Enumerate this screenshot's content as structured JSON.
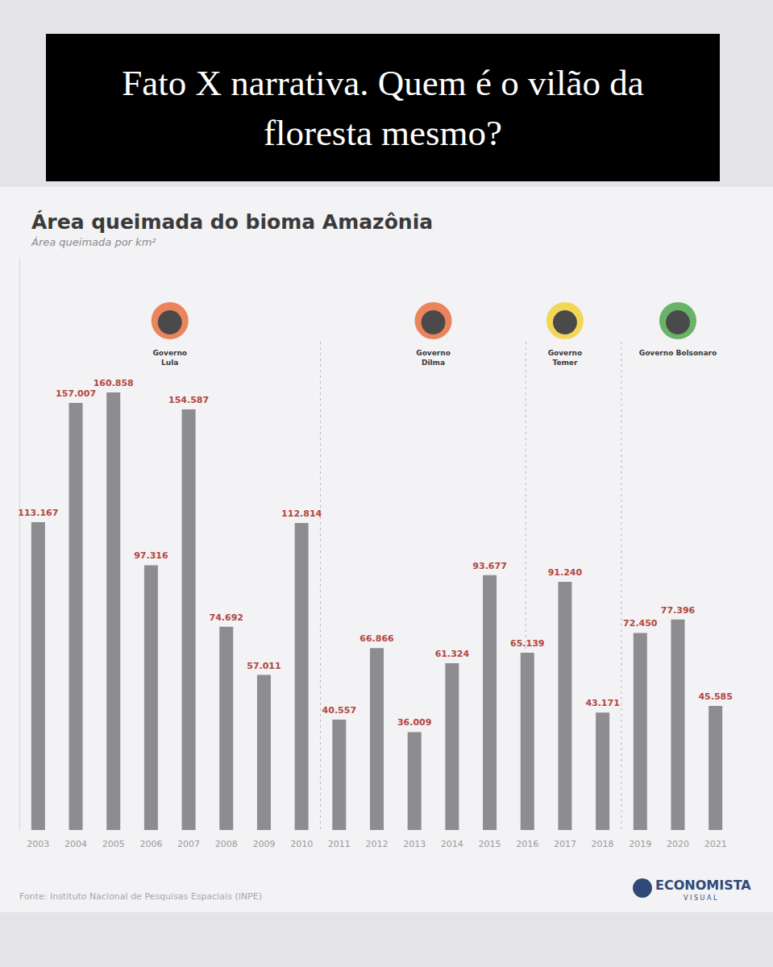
{
  "header": {
    "title": "Fato X narrativa. Quem é o vilão da floresta mesmo?"
  },
  "chart_data": {
    "type": "bar",
    "title": "Área queimada do bioma Amazônia",
    "subtitle": "Área queimada por km²",
    "categories": [
      "2003",
      "2004",
      "2005",
      "2006",
      "2007",
      "2008",
      "2009",
      "2010",
      "2011",
      "2012",
      "2013",
      "2014",
      "2015",
      "2016",
      "2017",
      "2018",
      "2019",
      "2020",
      "2021"
    ],
    "values": [
      113167,
      157007,
      160858,
      97316,
      154587,
      74692,
      57011,
      112814,
      40557,
      66866,
      36009,
      61324,
      93677,
      65139,
      91240,
      43171,
      72450,
      77396,
      45585
    ],
    "value_labels": [
      "113.167",
      "157.007",
      "160.858",
      "97.316",
      "154.587",
      "74.692",
      "57.011",
      "112.814",
      "40.557",
      "66.866",
      "36.009",
      "61.324",
      "93.677",
      "65.139",
      "91.240",
      "43.171",
      "72.450",
      "77.396",
      "45.585"
    ],
    "color": "#8d8d8f",
    "ylim": [
      0,
      210000
    ],
    "data_labels": true,
    "tick_labels": "x",
    "grid": false,
    "annotations": [
      {
        "text": "Governo Lula",
        "from": "2003",
        "to": "2010"
      },
      {
        "text": "Governo Dilma",
        "from": "2011",
        "to": "2016"
      },
      {
        "text": "Governo Temer",
        "from": "2016",
        "to": "2018"
      },
      {
        "text": "Governo Bolsonaro",
        "from": "2019",
        "to": "2021"
      }
    ],
    "source": "Fonte: Instituto Nacional de Pesquisas Espaciais (INPE)",
    "logo": [
      "ECONOMISTA",
      "VISUAL"
    ]
  }
}
